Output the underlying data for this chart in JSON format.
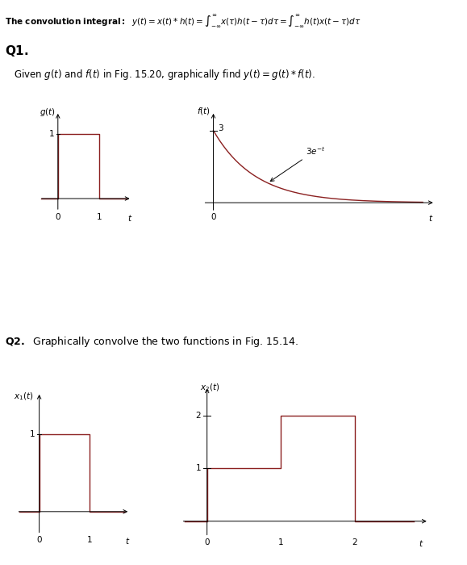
{
  "line_color": "#8B2020",
  "bg_color": "#ffffff",
  "text_color": "#000000",
  "header_bold": "The convolution integral:",
  "header_formula": "$y(t) = x(t)*h(t) = \\int_{-\\infty}^{\\infty} x(\\tau)h(t-\\tau)d\\tau = \\int_{-\\infty}^{\\infty} h(t)x(t-\\tau)d\\tau$",
  "q1_label": "Q1.",
  "q1_desc": "Given $g(t)$ and $f(t)$ in Fig. 15.20, graphically find $y(t) = g(t)*f(t)$.",
  "q2_label": "Q2.",
  "q2_desc": "Graphically convolve the two functions in Fig. 15.14."
}
